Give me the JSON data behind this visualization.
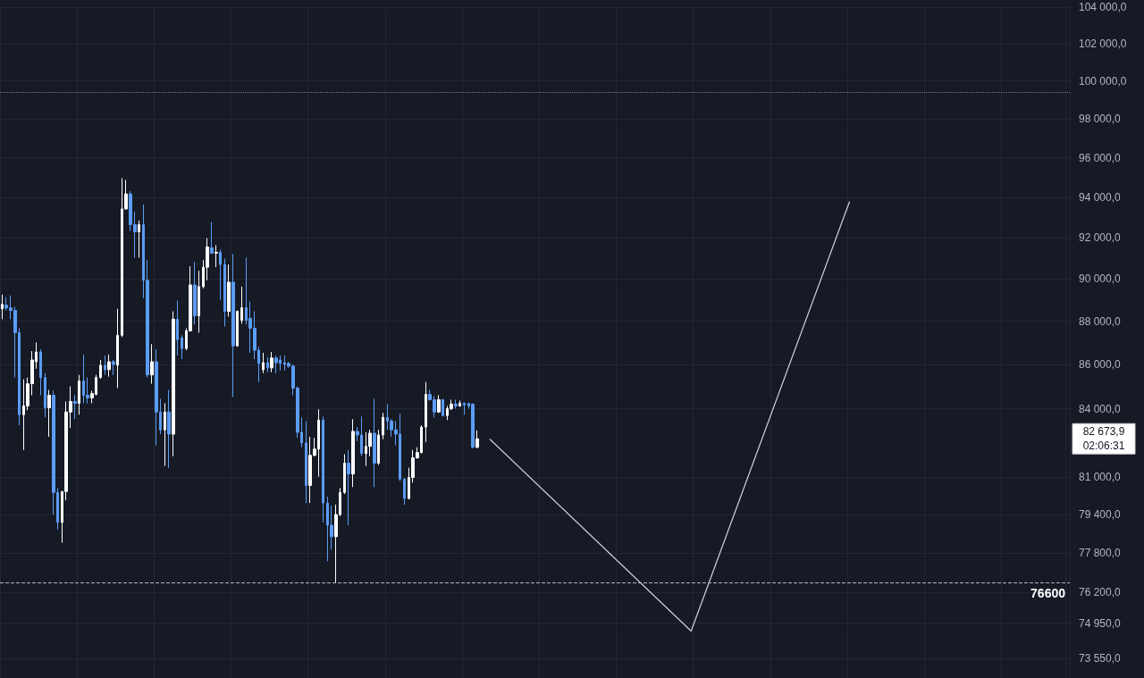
{
  "chart_data": {
    "type": "candlestick",
    "log": true,
    "grid": true,
    "tick_labels": "y",
    "marker": "none",
    "line_style": "solid",
    "categories": [
      null,
      null,
      null,
      null,
      null,
      null,
      null,
      null,
      null,
      null,
      null,
      null,
      null,
      null,
      null,
      null,
      null,
      null,
      null,
      null,
      null,
      null,
      null,
      null,
      null,
      null,
      null,
      null,
      null,
      null,
      null,
      null,
      null,
      null,
      null,
      null,
      null,
      null,
      null,
      null,
      null,
      null,
      null,
      null,
      null,
      null,
      null,
      null,
      null,
      null,
      null,
      null,
      null,
      null,
      null,
      null,
      null,
      null,
      null,
      null,
      null,
      null,
      null,
      null,
      null,
      null,
      null,
      null,
      null,
      null,
      null,
      null,
      null,
      null,
      null,
      null,
      null,
      null,
      null,
      null,
      null,
      null,
      null,
      null,
      null,
      null,
      null,
      null,
      null,
      null,
      null,
      null,
      null,
      null,
      null,
      null,
      null,
      null,
      null,
      null,
      null,
      null,
      null,
      null,
      null,
      null,
      null,
      null,
      null,
      null,
      null,
      null,
      null,
      null,
      null,
      null,
      null,
      null,
      null,
      null,
      null,
      null,
      null,
      null,
      null,
      null,
      null,
      null,
      null,
      null,
      null,
      null,
      null,
      null,
      null,
      null,
      null,
      null,
      null,
      null,
      null,
      null,
      null,
      null,
      null,
      null,
      null,
      null,
      null,
      null,
      null,
      null,
      null,
      null,
      null,
      null,
      null,
      null,
      null,
      null,
      null,
      null,
      null,
      null,
      null,
      null,
      null,
      null,
      null,
      null,
      null,
      null,
      null,
      null,
      null,
      null,
      null,
      null,
      null,
      null,
      null,
      null,
      null,
      null,
      null,
      null,
      null,
      null,
      null,
      null,
      null,
      null,
      null,
      null,
      null,
      null,
      null,
      null,
      null,
      null,
      null,
      null,
      null,
      null,
      null,
      null,
      null,
      null,
      null,
      null,
      null,
      null,
      null,
      null,
      null,
      null,
      null,
      null,
      null,
      null,
      null,
      null,
      null,
      null,
      null,
      null,
      null,
      null,
      null,
      null,
      null,
      null,
      null,
      null,
      null,
      null,
      null,
      null,
      null,
      null,
      null,
      null,
      null,
      null,
      null,
      null,
      null,
      null,
      null,
      null
    ],
    "ylim": [
      72800,
      104000
    ],
    "yticks": [
      {
        "value": 104000,
        "label": "104 000,0"
      },
      {
        "value": 102000,
        "label": "102 000,0"
      },
      {
        "value": 100000,
        "label": "100 000,0"
      },
      {
        "value": 98000,
        "label": "98 000,0"
      },
      {
        "value": 96000,
        "label": "96 000,0"
      },
      {
        "value": 94000,
        "label": "94 000,0"
      },
      {
        "value": 92000,
        "label": "92 000,0"
      },
      {
        "value": 90000,
        "label": "90 000,0"
      },
      {
        "value": 88000,
        "label": "88 000,0"
      },
      {
        "value": 86000,
        "label": "86 000,0"
      },
      {
        "value": 84000,
        "label": "84 000,0"
      },
      {
        "value": 81000,
        "label": "81 000,0"
      },
      {
        "value": 79400,
        "label": "79 400,0"
      },
      {
        "value": 77800,
        "label": "77 800,0"
      },
      {
        "value": 76200,
        "label": "76 200,0"
      },
      {
        "value": 74950,
        "label": "74 950,0"
      },
      {
        "value": 73550,
        "label": "73 550,0"
      }
    ],
    "ref_lines": [
      {
        "axis": "y",
        "value": 76600,
        "label": "76600",
        "line_style": "dashed",
        "color": "#b2b5be"
      },
      {
        "axis": "y",
        "value": 99400,
        "line_style": "dotted",
        "color": "#787b86"
      }
    ],
    "annotations": [
      "82 673,9\n02:06:31"
    ],
    "series": [
      {
        "colors": [
          "#ffffff",
          "#5b9cf6",
          "#5b9cf6",
          "#5b9cf6",
          "#5b9cf6",
          "#ffffff",
          "#ffffff",
          "#ffffff",
          "#ffffff",
          "#5b9cf6",
          "#5b9cf6",
          "#ffffff",
          "#5b9cf6",
          "#5b9cf6",
          "#ffffff",
          "#ffffff",
          "#ffffff",
          "#5b9cf6",
          "#ffffff",
          "#5b9cf6",
          "#5b9cf6",
          "#ffffff",
          "#ffffff",
          "#ffffff",
          "#5b9cf6",
          "#ffffff",
          "#5b9cf6",
          "#ffffff",
          "#ffffff",
          "#ffffff",
          "#5b9cf6",
          "#5b9cf6",
          "#ffffff",
          "#5b9cf6",
          "#5b9cf6",
          "#ffffff",
          "#5b9cf6",
          "#5b9cf6",
          "#ffffff",
          "#5b9cf6",
          "#ffffff",
          "#5b9cf6",
          "#5b9cf6",
          "#ffffff",
          "#ffffff",
          "#5b9cf6",
          "#ffffff",
          "#ffffff",
          "#ffffff",
          "#5b9cf6",
          "#ffffff",
          "#5b9cf6",
          "#5b9cf6",
          "#ffffff",
          "#5b9cf6",
          "#ffffff",
          "#ffffff",
          "#5b9cf6",
          "#5b9cf6",
          "#5b9cf6",
          "#5b9cf6",
          "#ffffff",
          "#5b9cf6",
          "#ffffff",
          "#5b9cf6",
          "#5b9cf6",
          "#5b9cf6",
          "#5b9cf6",
          "#5b9cf6",
          "#5b9cf6",
          "#5b9cf6",
          "#5b9cf6",
          "#ffffff",
          "#ffffff",
          "#ffffff",
          "#5b9cf6",
          "#5b9cf6",
          "#5b9cf6",
          "#ffffff",
          "#ffffff",
          "#ffffff",
          "#5b9cf6",
          "#ffffff",
          "#5b9cf6",
          "#5b9cf6",
          "#ffffff",
          "#ffffff",
          "#5b9cf6",
          "#ffffff",
          "#ffffff",
          "#5b9cf6",
          "#5b9cf6",
          "#5b9cf6",
          "#5b9cf6",
          "#5b9cf6",
          "#ffffff",
          "#ffffff",
          "#ffffff",
          "#ffffff",
          "#ffffff",
          "#5b9cf6",
          "#5b9cf6",
          "#ffffff",
          "#5b9cf6",
          "#ffffff",
          "#ffffff",
          "#5b9cf6",
          "#ffffff",
          "#5b9cf6",
          "#5b9cf6",
          "#5b9cf6",
          "#ffffff",
          null,
          null,
          null,
          null,
          null,
          null,
          null,
          null,
          null,
          null,
          null,
          null,
          null,
          null,
          null,
          null,
          null,
          null,
          null,
          null,
          null,
          null,
          null,
          null,
          null,
          null,
          null,
          null,
          null,
          null,
          null,
          null,
          null,
          null,
          null,
          null,
          null,
          null,
          null,
          null,
          null,
          null,
          null,
          null,
          null,
          null,
          null,
          null,
          null,
          null,
          null,
          null,
          null,
          null,
          null,
          null,
          null,
          null,
          null,
          null,
          null,
          null,
          null,
          null,
          null,
          null,
          null,
          null,
          null,
          null,
          null,
          null,
          null,
          null,
          null,
          null,
          null,
          null,
          null,
          null,
          null,
          null,
          null,
          null,
          null,
          null,
          null,
          null,
          null,
          null,
          null,
          null,
          null,
          null,
          null,
          null,
          null,
          null,
          null,
          null,
          null,
          null,
          null,
          null,
          null,
          null,
          null,
          null,
          null,
          null,
          null,
          null,
          null,
          null,
          null,
          null,
          null,
          null,
          null,
          null,
          null,
          null,
          null,
          null,
          null,
          null,
          null,
          null,
          null,
          null,
          null,
          null,
          null,
          null,
          null,
          null,
          null,
          null
        ],
        "ohlc": [
          [
            88590,
            89260,
            88100,
            88800
          ],
          [
            88760,
            89140,
            88510,
            88630
          ],
          [
            88630,
            89220,
            88100,
            88510
          ],
          [
            88510,
            88680,
            85410,
            87470
          ],
          [
            87470,
            87680,
            83270,
            83740
          ],
          [
            83740,
            85330,
            82180,
            84130
          ],
          [
            84130,
            85410,
            83940,
            85130
          ],
          [
            85130,
            86620,
            84610,
            86210
          ],
          [
            86130,
            87020,
            85810,
            86580
          ],
          [
            86580,
            86700,
            84610,
            85410
          ],
          [
            85410,
            85610,
            83620,
            84050
          ],
          [
            84050,
            84850,
            82760,
            84610
          ],
          [
            84610,
            84810,
            79410,
            80350
          ],
          [
            80350,
            80540,
            78780,
            79080
          ],
          [
            79080,
            80390,
            78230,
            80390
          ],
          [
            80390,
            84330,
            80010,
            83860
          ],
          [
            83860,
            85010,
            83150,
            84330
          ],
          [
            84330,
            84610,
            83540,
            84250
          ],
          [
            84250,
            85530,
            83740,
            85250
          ],
          [
            85250,
            86460,
            84250,
            84610
          ],
          [
            84610,
            85410,
            84250,
            84490
          ],
          [
            84490,
            84810,
            84250,
            84690
          ],
          [
            84650,
            85530,
            84610,
            85410
          ],
          [
            85410,
            86210,
            85360,
            85970
          ],
          [
            85970,
            86420,
            85530,
            85770
          ],
          [
            85770,
            86460,
            85450,
            86130
          ],
          [
            86130,
            86210,
            85530,
            86010
          ],
          [
            85970,
            88590,
            84930,
            87350
          ],
          [
            87350,
            94960,
            87270,
            93420
          ],
          [
            93420,
            94870,
            93380,
            94170
          ],
          [
            94170,
            94300,
            92330,
            92640
          ],
          [
            92640,
            93290,
            91030,
            92290
          ],
          [
            92290,
            92850,
            91030,
            92640
          ],
          [
            92640,
            93640,
            89090,
            89940
          ],
          [
            89940,
            90910,
            85410,
            85530
          ],
          [
            85530,
            86940,
            85130,
            86130
          ],
          [
            86130,
            86700,
            82380,
            83860
          ],
          [
            83860,
            84450,
            82880,
            83070
          ],
          [
            83070,
            84250,
            81490,
            83860
          ],
          [
            83860,
            84850,
            81410,
            82880
          ],
          [
            82880,
            88470,
            81910,
            88100
          ],
          [
            88100,
            88970,
            86420,
            87150
          ],
          [
            87230,
            87350,
            86250,
            86740
          ],
          [
            86740,
            87680,
            86660,
            87560
          ],
          [
            87560,
            90610,
            87520,
            89720
          ],
          [
            89720,
            90820,
            87850,
            88260
          ],
          [
            88260,
            90400,
            87470,
            89640
          ],
          [
            89640,
            90910,
            89550,
            90570
          ],
          [
            90570,
            91980,
            89940,
            91550
          ],
          [
            91510,
            92770,
            91210,
            91250
          ],
          [
            91250,
            91640,
            90570,
            91290
          ],
          [
            91290,
            91420,
            89010,
            90700
          ],
          [
            90700,
            90990,
            87760,
            88470
          ],
          [
            88470,
            90700,
            88220,
            89850
          ],
          [
            89850,
            91210,
            84530,
            86860
          ],
          [
            86860,
            88510,
            86820,
            88470
          ],
          [
            88050,
            89640,
            87890,
            88640
          ],
          [
            88640,
            91040,
            87850,
            88050
          ],
          [
            88140,
            88930,
            86540,
            87680
          ],
          [
            87680,
            88470,
            86250,
            86660
          ],
          [
            86660,
            86820,
            85210,
            86050
          ],
          [
            85770,
            86540,
            85610,
            86090
          ],
          [
            86090,
            86340,
            85650,
            85850
          ],
          [
            85850,
            86580,
            85650,
            86300
          ],
          [
            86300,
            86420,
            85610,
            86090
          ],
          [
            86210,
            86420,
            85730,
            86050
          ],
          [
            86090,
            86420,
            85730,
            86010
          ],
          [
            86050,
            86130,
            85850,
            85930
          ],
          [
            85930,
            86010,
            84610,
            84930
          ],
          [
            84930,
            85010,
            82720,
            82960
          ],
          [
            82960,
            83620,
            82300,
            82490
          ],
          [
            82490,
            83460,
            79900,
            80650
          ],
          [
            80650,
            82760,
            79900,
            81950
          ],
          [
            81950,
            82720,
            81910,
            82220
          ],
          [
            82220,
            83980,
            81030,
            83500
          ],
          [
            83500,
            83660,
            79080,
            79900
          ],
          [
            79900,
            80170,
            77460,
            78960
          ],
          [
            78960,
            79790,
            77940,
            78480
          ],
          [
            78480,
            79830,
            76600,
            79410
          ],
          [
            79410,
            80540,
            79340,
            80350
          ],
          [
            80350,
            82000,
            80280,
            81610
          ],
          [
            81610,
            82180,
            78960,
            81140
          ],
          [
            81140,
            83540,
            80580,
            83000
          ],
          [
            83000,
            83190,
            82570,
            82840
          ],
          [
            82840,
            83660,
            81910,
            82030
          ],
          [
            82030,
            82960,
            81490,
            82340
          ],
          [
            82340,
            83070,
            81910,
            82920
          ],
          [
            82920,
            84450,
            80580,
            81610
          ],
          [
            81610,
            83070,
            81530,
            82840
          ],
          [
            82840,
            83820,
            82650,
            83620
          ],
          [
            83620,
            84210,
            83070,
            83460
          ],
          [
            83460,
            83540,
            82760,
            83070
          ],
          [
            83070,
            83460,
            82380,
            82880
          ],
          [
            82880,
            83780,
            80840,
            80920
          ],
          [
            80920,
            80960,
            79820,
            80090
          ],
          [
            80090,
            81410,
            80050,
            80990
          ],
          [
            80990,
            82180,
            80770,
            81840
          ],
          [
            81840,
            82300,
            81800,
            82070
          ],
          [
            82070,
            83270,
            82030,
            83190
          ],
          [
            83190,
            85210,
            82530,
            84650
          ],
          [
            84650,
            84850,
            84370,
            84410
          ],
          [
            84410,
            84570,
            83620,
            83860
          ],
          [
            83860,
            84610,
            83820,
            84410
          ],
          [
            84410,
            84450,
            83660,
            83700
          ],
          [
            83700,
            84130,
            83500,
            84010
          ],
          [
            84010,
            84410,
            83940,
            84210
          ],
          [
            84210,
            84410,
            84010,
            84130
          ],
          [
            84130,
            84370,
            84090,
            84250
          ],
          [
            84250,
            84290,
            83740,
            84170
          ],
          [
            84250,
            84250,
            84010,
            84130
          ],
          [
            84210,
            84250,
            82260,
            82300
          ],
          [
            82300,
            83040,
            82260,
            82673.9
          ],
          null,
          null,
          null,
          null,
          null,
          null,
          null,
          null,
          null,
          null,
          null,
          null,
          null,
          null,
          null,
          null,
          null,
          null,
          null,
          null,
          null,
          null,
          null,
          null,
          null,
          null,
          null,
          null,
          null,
          null,
          null,
          null,
          null,
          null,
          null,
          null,
          null,
          null,
          null,
          null,
          null,
          null,
          null,
          null,
          null,
          null,
          null,
          null,
          null,
          null,
          null,
          null,
          null,
          null,
          null,
          null,
          null,
          null,
          null,
          null,
          null,
          null,
          null,
          null,
          null,
          null,
          null,
          null,
          null,
          null,
          null,
          null,
          null,
          null,
          null,
          null,
          null,
          null,
          null,
          null,
          null,
          null,
          null,
          null,
          null,
          null,
          null,
          null,
          null,
          null,
          null,
          null,
          null,
          null,
          null,
          null,
          null,
          null,
          null,
          null,
          null,
          null,
          null,
          null,
          null,
          null,
          null,
          null,
          null,
          null,
          null,
          null,
          null,
          null,
          null,
          null,
          null,
          null,
          null,
          null,
          null,
          null,
          null,
          null,
          null,
          null,
          null,
          null,
          null,
          null,
          null,
          null,
          null,
          null,
          null,
          null,
          null,
          null
        ]
      },
      {
        "type": "line",
        "color": "#d1d4dc",
        "values": [
          null,
          null,
          null,
          null,
          null,
          null,
          null,
          null,
          null,
          null,
          null,
          null,
          null,
          null,
          null,
          null,
          null,
          null,
          null,
          null,
          null,
          null,
          null,
          null,
          null,
          null,
          null,
          null,
          null,
          null,
          null,
          null,
          null,
          null,
          null,
          null,
          null,
          null,
          null,
          null,
          null,
          null,
          null,
          null,
          null,
          null,
          null,
          null,
          null,
          null,
          null,
          null,
          null,
          null,
          null,
          null,
          null,
          null,
          null,
          null,
          null,
          null,
          null,
          null,
          null,
          null,
          null,
          null,
          null,
          null,
          null,
          null,
          null,
          null,
          null,
          null,
          null,
          null,
          null,
          null,
          null,
          null,
          null,
          null,
          null,
          null,
          null,
          null,
          null,
          null,
          null,
          null,
          null,
          null,
          null,
          null,
          null,
          null,
          null,
          null,
          null,
          null,
          null,
          null,
          null,
          null,
          null,
          null,
          null,
          null,
          null,
          null,
          null,
          null,
          82650,
          null,
          null,
          null,
          null,
          null,
          null,
          null,
          null,
          null,
          null,
          null,
          null,
          null,
          null,
          null,
          null,
          null,
          null,
          null,
          null,
          null,
          null,
          null,
          null,
          null,
          null,
          null,
          null,
          null,
          null,
          null,
          null,
          null,
          null,
          null,
          null,
          null,
          null,
          null,
          null,
          null,
          null,
          null,
          null,
          null,
          null,
          74640,
          null,
          null,
          null,
          null,
          null,
          null,
          null,
          null,
          null,
          null,
          null,
          null,
          null,
          null,
          null,
          null,
          null,
          null,
          null,
          null,
          null,
          null,
          null,
          null,
          null,
          null,
          null,
          null,
          null,
          null,
          null,
          null,
          null,
          null,
          null,
          null,
          93770,
          null,
          null,
          null,
          null,
          null,
          null,
          null,
          null,
          null,
          null,
          null,
          null,
          null,
          null,
          null,
          null,
          null,
          null,
          null,
          null,
          null,
          null,
          null,
          null,
          null,
          null,
          null,
          null,
          null,
          null,
          null,
          null,
          null,
          null,
          null,
          null,
          null,
          null,
          null,
          null,
          null,
          null,
          null,
          null,
          null,
          null,
          null,
          null,
          null,
          null,
          null
        ]
      }
    ]
  }
}
